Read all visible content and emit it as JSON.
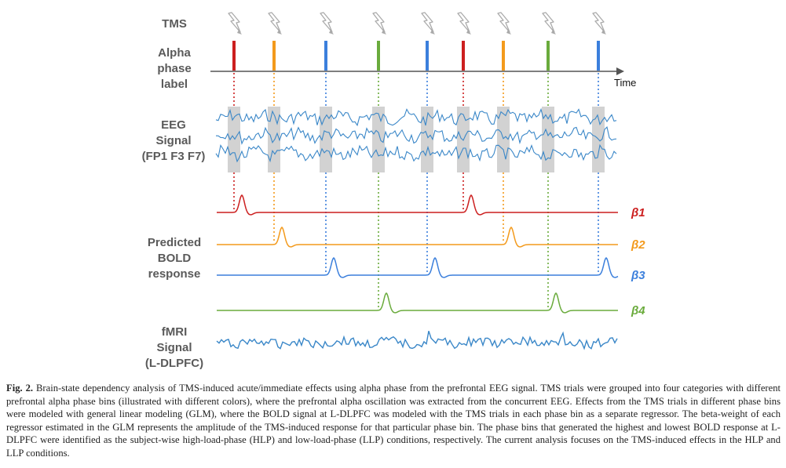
{
  "labels": {
    "tms": "TMS",
    "alpha": "Alpha\nphase\nlabel",
    "time": "Time",
    "eeg": "EEG\nSignal\n(FP1 F3 F7)",
    "predicted": "Predicted\nBOLD\nresponse",
    "fmri": "fMRI\nSignal\n(L-DLPFC)"
  },
  "betas": [
    "β1",
    "β2",
    "β3",
    "β4"
  ],
  "colors": {
    "red": "#cc1f1f",
    "orange": "#f39a1c",
    "blue": "#3b7fdc",
    "green": "#6aab3c",
    "eeg": "#3a87c8",
    "gray_band": "#d2d2d2",
    "bolt": "#aaaaaa"
  },
  "pulses": [
    {
      "bin": "red"
    },
    {
      "bin": "orange"
    },
    {
      "bin": "blue"
    },
    {
      "bin": "green"
    },
    {
      "bin": "blue"
    },
    {
      "bin": "red"
    },
    {
      "bin": "orange"
    },
    {
      "bin": "green"
    },
    {
      "bin": "blue"
    }
  ],
  "caption": {
    "figure": "Fig. 2.",
    "text": "Brain-state dependency analysis of TMS-induced acute/immediate effects using alpha phase from the prefrontal EEG signal. TMS trials were grouped into four categories with different prefrontal alpha phase bins (illustrated with different colors), where the prefrontal alpha oscillation was extracted from the concurrent EEG. Effects from the TMS trials in different phase bins were modeled with general linear modeling (GLM), where the BOLD signal at L-DLPFC was modeled with the TMS trials in each phase bin as a separate regressor. The beta-weight of each regressor estimated in the GLM represents the amplitude of the TMS-induced response for that particular phase bin. The phase bins that generated the highest and lowest BOLD response at L-DLPFC were identified as the subject-wise high-load-phase (HLP) and low-load-phase (LLP) conditions, respectively. The current analysis focuses on the TMS-induced effects in the HLP and LLP conditions."
  }
}
